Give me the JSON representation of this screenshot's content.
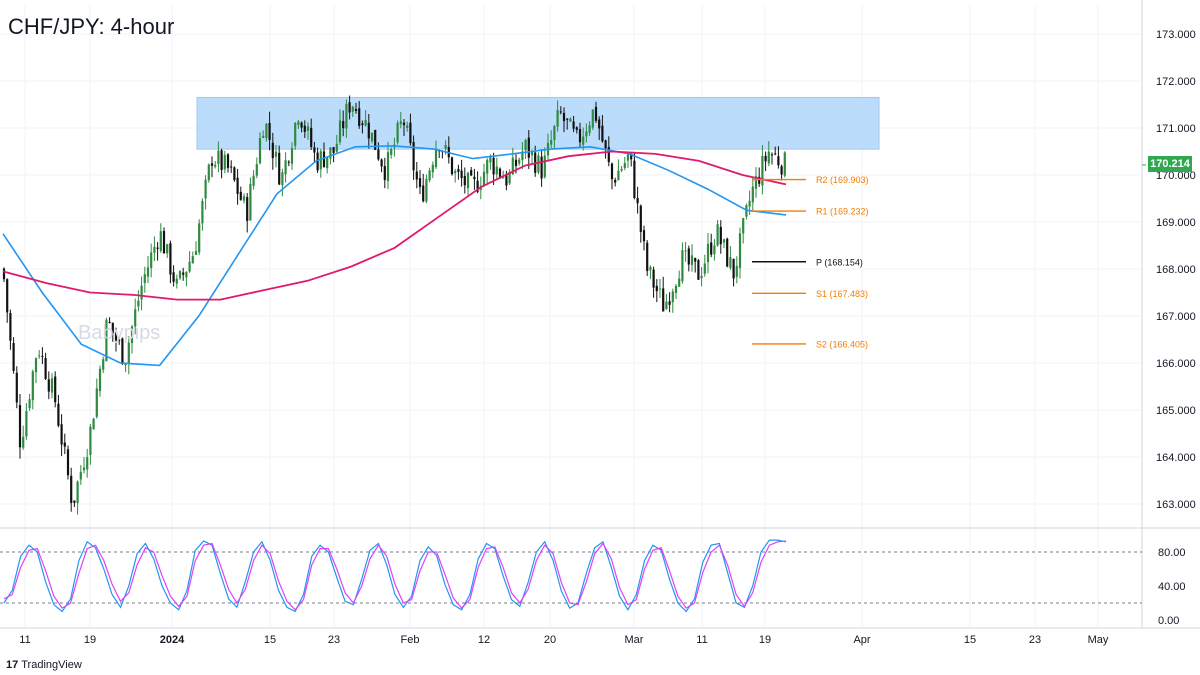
{
  "title": "CHF/JPY: 4-hour",
  "watermark": "Babypips",
  "branding": "TradingView",
  "last_price_label": "170.214",
  "colors": {
    "up": "#2f8a40",
    "down": "#111111",
    "ma_fast": "#2196f3",
    "ma_slow": "#e0196e",
    "zone": "#bbdcfb",
    "pivot_orange": "#f57c00",
    "pivot_black": "#111111",
    "stoch_k": "#2196f3",
    "stoch_d": "#e040fb",
    "last_price": "#2fa84f"
  },
  "chart_data": [
    {
      "type": "candlestick",
      "title": "CHF/JPY: 4-hour",
      "y_ticks": [
        "173.000",
        "172.000",
        "171.000",
        "170.000",
        "169.000",
        "168.000",
        "167.000",
        "166.000",
        "165.000",
        "164.000",
        "163.000"
      ],
      "ylim": [
        162.5,
        173.5
      ],
      "x_ticks": [
        "11",
        "19",
        "2024",
        "15",
        "23",
        "Feb",
        "12",
        "20",
        "Mar",
        "11",
        "19",
        "Apr",
        "15",
        "23",
        "May"
      ],
      "last_price": 170.214,
      "resistance_zone": [
        170.55,
        171.65
      ],
      "pivot_levels": [
        {
          "label": "R2 (169.903)",
          "value": 169.903
        },
        {
          "label": "R1 (169.232)",
          "value": 169.232
        },
        {
          "label": "P (168.154)",
          "value": 168.154
        },
        {
          "label": "S1 (167.483)",
          "value": 167.483
        },
        {
          "label": "S2 (166.405)",
          "value": 166.405
        }
      ],
      "price_path_anchors": [
        [
          "Jan 4",
          168.0
        ],
        [
          "Jan 6",
          164.3
        ],
        [
          "Jan 8",
          166.4
        ],
        [
          "Jan 10",
          165.2
        ],
        [
          "Jan 12",
          163.0
        ],
        [
          "Jan 15",
          164.5
        ],
        [
          "Jan 17",
          166.9
        ],
        [
          "Jan 19",
          166.1
        ],
        [
          "Jan 22",
          167.7
        ],
        [
          "Jan 24",
          168.8
        ],
        [
          "Jan 26",
          167.6
        ],
        [
          "Jan 29",
          168.4
        ],
        [
          "Jan 31",
          170.4
        ],
        [
          "Feb 2",
          170.1
        ],
        [
          "Feb 4",
          169.2
        ],
        [
          "Feb 6",
          171.2
        ],
        [
          "Feb 8",
          169.9
        ],
        [
          "Feb 10",
          171.4
        ],
        [
          "Feb 13",
          170.3
        ],
        [
          "Feb 16",
          170.5
        ],
        [
          "Feb 19",
          171.6
        ],
        [
          "Feb 21",
          171.0
        ],
        [
          "Feb 23",
          170.1
        ],
        [
          "Feb 26",
          171.2
        ],
        [
          "Feb 28",
          169.5
        ],
        [
          "Mar 1",
          170.8
        ],
        [
          "Mar 4",
          170.0
        ],
        [
          "Mar 6",
          169.7
        ],
        [
          "Mar 8",
          170.3
        ],
        [
          "Mar 11",
          169.9
        ],
        [
          "Mar 13",
          170.6
        ],
        [
          "Mar 15",
          170.1
        ],
        [
          "Mar 18",
          171.3
        ],
        [
          "Mar 20",
          170.7
        ],
        [
          "Mar 22",
          171.4
        ],
        [
          "Mar 25",
          169.9
        ],
        [
          "Mar 27",
          170.4
        ],
        [
          "Mar 29",
          168.0
        ],
        [
          "Apr 1",
          167.2
        ],
        [
          "Apr 3",
          168.2
        ],
        [
          "Apr 5",
          167.9
        ],
        [
          "Apr 8",
          168.8
        ],
        [
          "Apr 10",
          167.9
        ],
        [
          "Apr 12",
          169.6
        ],
        [
          "Apr 15",
          170.5
        ],
        [
          "Apr 16",
          170.2
        ]
      ],
      "ma_fast_path": [
        [
          "Jan 4",
          168.75
        ],
        [
          "Jan 10",
          167.5
        ],
        [
          "Jan 16",
          166.4
        ],
        [
          "Jan 22",
          166.0
        ],
        [
          "Jan 26",
          165.95
        ],
        [
          "Feb 1",
          167.0
        ],
        [
          "Feb 6",
          168.3
        ],
        [
          "Feb 11",
          169.6
        ],
        [
          "Feb 15",
          170.3
        ],
        [
          "Feb 19",
          170.6
        ],
        [
          "Feb 24",
          170.62
        ],
        [
          "Mar 1",
          170.55
        ],
        [
          "Mar 6",
          170.35
        ],
        [
          "Mar 11",
          170.45
        ],
        [
          "Mar 17",
          170.55
        ],
        [
          "Mar 22",
          170.6
        ],
        [
          "Mar 27",
          170.45
        ],
        [
          "Apr 2",
          170.1
        ],
        [
          "Apr 8",
          169.7
        ],
        [
          "Apr 12",
          169.25
        ],
        [
          "Apr 16",
          169.15
        ]
      ],
      "ma_slow_path": [
        [
          "Jan 4",
          167.95
        ],
        [
          "Jan 10",
          167.7
        ],
        [
          "Jan 16",
          167.5
        ],
        [
          "Jan 22",
          167.45
        ],
        [
          "Jan 28",
          167.35
        ],
        [
          "Feb 3",
          167.35
        ],
        [
          "Feb 9",
          167.55
        ],
        [
          "Feb 16",
          167.75
        ],
        [
          "Feb 22",
          168.05
        ],
        [
          "Feb 27",
          168.45
        ],
        [
          "Mar 3",
          169.1
        ],
        [
          "Mar 9",
          169.75
        ],
        [
          "Mar 15",
          170.2
        ],
        [
          "Mar 21",
          170.4
        ],
        [
          "Mar 26",
          170.5
        ],
        [
          "Apr 1",
          170.45
        ],
        [
          "Apr 6",
          170.3
        ],
        [
          "Apr 11",
          170.0
        ],
        [
          "Apr 16",
          169.8
        ]
      ]
    },
    {
      "type": "line",
      "title": "",
      "y_ticks": [
        "80.00",
        "40.00",
        "0.00"
      ],
      "ylim": [
        -5,
        105
      ],
      "reference_lines": [
        80,
        20
      ],
      "series": [
        {
          "name": "",
          "values": [
            20,
            35,
            75,
            88,
            80,
            45,
            18,
            10,
            25,
            70,
            92,
            85,
            60,
            30,
            15,
            40,
            78,
            90,
            72,
            40,
            20,
            12,
            35,
            82,
            93,
            88,
            55,
            25,
            15,
            45,
            80,
            92,
            70,
            35,
            15,
            10,
            30,
            75,
            88,
            80,
            50,
            22,
            18,
            48,
            82,
            90,
            65,
            30,
            15,
            28,
            70,
            86,
            76,
            42,
            18,
            12,
            30,
            72,
            90,
            84,
            52,
            24,
            16,
            44,
            80,
            92,
            70,
            34,
            14,
            20,
            55,
            85,
            92,
            62,
            28,
            12,
            30,
            70,
            88,
            82,
            48,
            20,
            10,
            25,
            68,
            88,
            90,
            55,
            20,
            15,
            40,
            80,
            94,
            94,
            92
          ]
        },
        {
          "name": "",
          "values": [
            25,
            30,
            62,
            82,
            84,
            58,
            28,
            14,
            20,
            55,
            84,
            88,
            70,
            42,
            22,
            32,
            65,
            85,
            80,
            52,
            28,
            16,
            28,
            70,
            88,
            90,
            65,
            36,
            20,
            36,
            70,
            88,
            78,
            46,
            22,
            12,
            24,
            65,
            84,
            84,
            60,
            32,
            20,
            40,
            72,
            88,
            75,
            42,
            20,
            24,
            58,
            80,
            80,
            54,
            26,
            14,
            24,
            62,
            84,
            86,
            62,
            32,
            20,
            36,
            70,
            88,
            78,
            44,
            20,
            18,
            45,
            78,
            90,
            72,
            38,
            18,
            24,
            60,
            82,
            85,
            58,
            28,
            14,
            20,
            56,
            80,
            88,
            64,
            30,
            16,
            32,
            68,
            88,
            92,
            93
          ]
        }
      ]
    }
  ]
}
